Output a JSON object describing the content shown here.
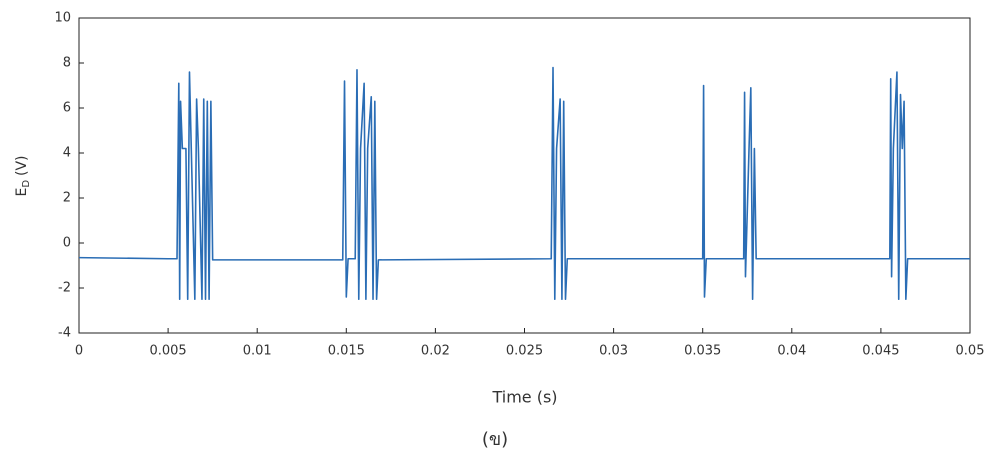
{
  "chart_data": {
    "type": "line",
    "xlabel": "Time (s)",
    "ylabel": [
      "E",
      "D",
      "(V)"
    ],
    "caption": "(ข)",
    "xlim": [
      0,
      0.05
    ],
    "xticks": [
      0,
      0.005,
      0.01,
      0.015,
      0.02,
      0.025,
      0.03,
      0.035,
      0.04,
      0.045,
      0.05
    ],
    "ylim": [
      -4,
      10
    ],
    "yticks": [
      -4,
      -2,
      0,
      2,
      4,
      6,
      8,
      10
    ],
    "x": [
      0,
      0.005,
      0.0055,
      0.0056,
      0.00565,
      0.0057,
      0.0058,
      0.006,
      0.0061,
      0.0062,
      0.0063,
      0.0065,
      0.0066,
      0.0067,
      0.0069,
      0.007,
      0.0071,
      0.0072,
      0.0073,
      0.0074,
      0.0075,
      0.0148,
      0.0149,
      0.015,
      0.0151,
      0.0155,
      0.0156,
      0.0157,
      0.0158,
      0.016,
      0.0161,
      0.0162,
      0.0164,
      0.0165,
      0.0166,
      0.0167,
      0.0168,
      0.0265,
      0.0266,
      0.0267,
      0.0268,
      0.027,
      0.0271,
      0.0272,
      0.0273,
      0.0274,
      0.035,
      0.03505,
      0.0351,
      0.0352,
      0.0373,
      0.03735,
      0.0374,
      0.0376,
      0.0377,
      0.0378,
      0.0379,
      0.038,
      0.0455,
      0.04555,
      0.0456,
      0.0457,
      0.0459,
      0.046,
      0.0461,
      0.0462,
      0.0463,
      0.0464,
      0.0465,
      0.05
    ],
    "series": [
      {
        "name": "ED",
        "color": "#2a6db5",
        "values": [
          -0.65,
          -0.7,
          -0.7,
          7.1,
          -2.5,
          6.3,
          4.2,
          4.2,
          -2.5,
          7.6,
          4.2,
          -2.5,
          6.4,
          4.2,
          -2.5,
          6.4,
          -2.5,
          6.3,
          -2.5,
          6.3,
          -0.75,
          -0.75,
          7.2,
          -2.4,
          -0.7,
          -0.7,
          7.7,
          -2.5,
          4.2,
          7.1,
          -2.5,
          4.2,
          6.5,
          -2.5,
          6.3,
          -2.5,
          -0.75,
          -0.7,
          7.8,
          -2.5,
          4.2,
          6.4,
          -2.5,
          6.3,
          -2.5,
          -0.7,
          -0.7,
          7,
          -2.4,
          -0.7,
          -0.7,
          6.7,
          -1.5,
          4.2,
          6.9,
          -2.5,
          4.2,
          -0.7,
          -0.7,
          7.3,
          -1.5,
          4.2,
          7.6,
          -2.5,
          6.6,
          4.2,
          6.3,
          -2.5,
          -0.7,
          -0.7
        ]
      }
    ]
  }
}
